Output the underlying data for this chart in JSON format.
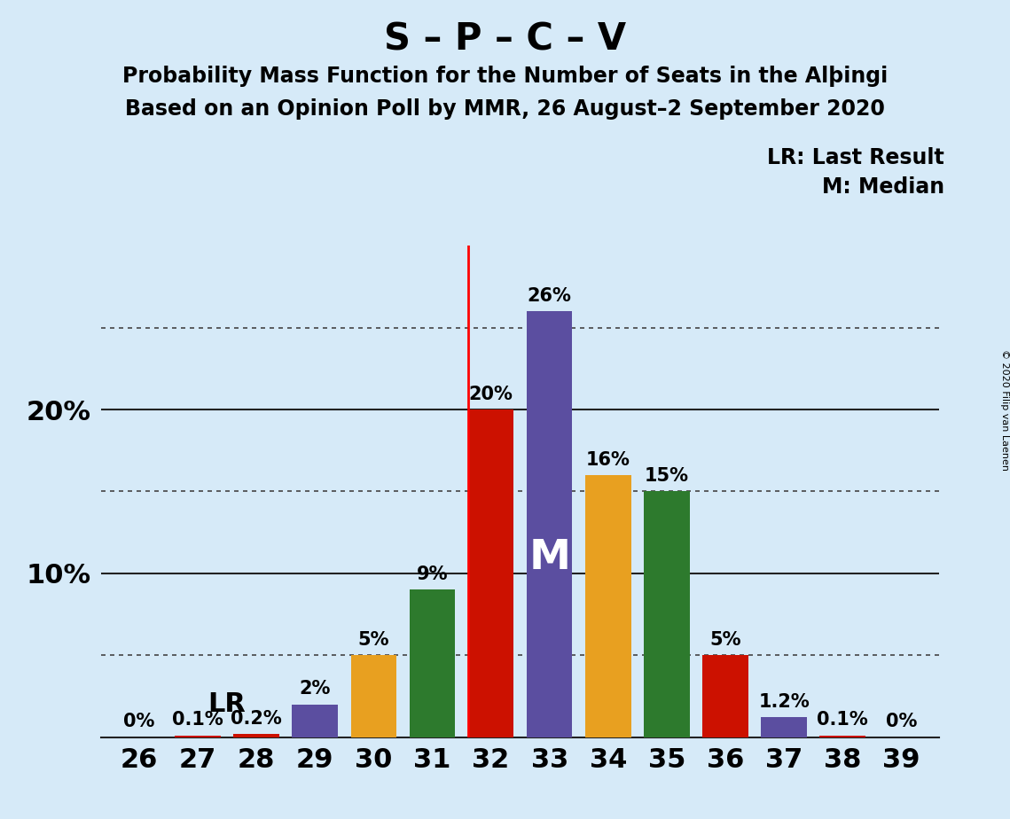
{
  "title_main": "S – P – C – V",
  "subtitle1": "Probability Mass Function for the Number of Seats in the Alþingi",
  "subtitle2": "Based on an Opinion Poll by MMR, 26 August–2 September 2020",
  "copyright": "© 2020 Filip van Laenen",
  "legend_lr": "LR: Last Result",
  "legend_m": "M: Median",
  "seats": [
    26,
    27,
    28,
    29,
    30,
    31,
    32,
    33,
    34,
    35,
    36,
    37,
    38,
    39
  ],
  "values": [
    0.0,
    0.1,
    0.2,
    2.0,
    5.0,
    9.0,
    20.0,
    26.0,
    16.0,
    15.0,
    5.0,
    1.2,
    0.1,
    0.0
  ],
  "labels": [
    "0%",
    "0.1%",
    "0.2%",
    "2%",
    "5%",
    "9%",
    "20%",
    "26%",
    "16%",
    "15%",
    "5%",
    "1.2%",
    "0.1%",
    "0%"
  ],
  "colors": [
    "#5b4ea0",
    "#cc1100",
    "#cc1100",
    "#5b4ea0",
    "#e8a020",
    "#2d7a2d",
    "#cc1100",
    "#5b4ea0",
    "#e8a020",
    "#2d7a2d",
    "#cc1100",
    "#5b4ea0",
    "#cc1100",
    "#5b4ea0"
  ],
  "lr_seat": 32,
  "median_seat": 33,
  "lr_label_seat": 28,
  "dotted_lines": [
    5,
    15,
    25
  ],
  "solid_lines": [
    10,
    20
  ],
  "bg_color": "#d6eaf8",
  "bar_width": 0.78,
  "title_fontsize": 30,
  "subtitle_fontsize": 17,
  "label_fontsize": 15,
  "ytick_fontsize": 22,
  "xtick_fontsize": 22,
  "legend_fontsize": 17,
  "m_fontsize": 34,
  "lr_fontsize": 22
}
